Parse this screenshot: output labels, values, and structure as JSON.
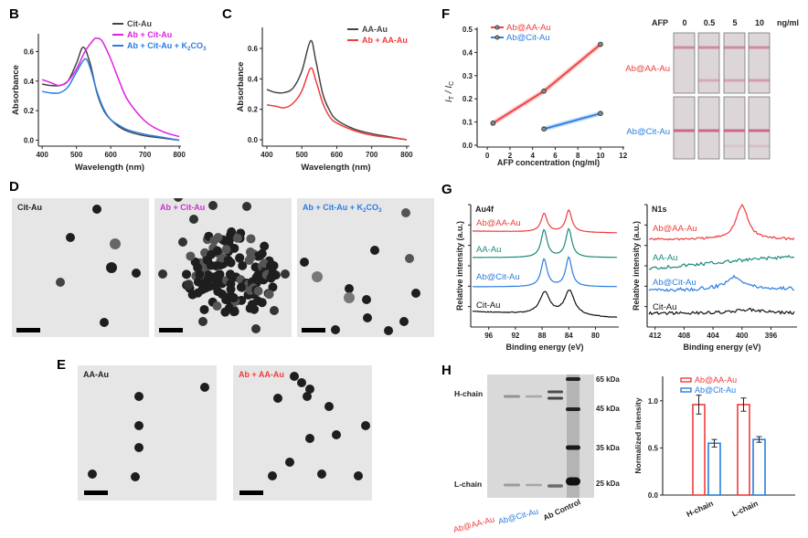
{
  "panel_letters": {
    "B": "B",
    "C": "C",
    "D": "D",
    "E": "E",
    "F": "F",
    "G": "G",
    "H": "H"
  },
  "colors": {
    "cit_au": "#444444",
    "ab_cit_au": "#e020e0",
    "ab_cit_au_k2co3": "#2a7de1",
    "aa_au": "#444444",
    "ab_aa_au": "#f03c3c",
    "ab_at_aa_au": "#f03c3c",
    "ab_at_cit_au": "#2a7de1",
    "aa_au_xps": "#1a8a7a",
    "cit_au_xps": "#111111"
  },
  "tem": {
    "D": [
      {
        "label": "Cit-Au",
        "color": "#222222"
      },
      {
        "label": "Ab + Cit-Au",
        "color": "#d030d0"
      },
      {
        "label_parts": [
          "Ab + Cit-Au + K",
          "2",
          "CO",
          "3"
        ],
        "color": "#2a7de1"
      }
    ],
    "E": [
      {
        "label": "AA-Au",
        "color": "#222222"
      },
      {
        "label": "Ab + AA-Au",
        "color": "#f03c3c"
      }
    ]
  },
  "strips": {
    "header": "AFP",
    "concentrations": [
      "0",
      "0.5",
      "5",
      "10"
    ],
    "unit": "ng/ml",
    "rows": [
      "Ab@AA-Au",
      "Ab@Cit-Au"
    ]
  },
  "gel": {
    "row_labels": [
      "H-chain",
      "L-chain"
    ],
    "markers": [
      "65 kDa",
      "45 kDa",
      "35 kDa",
      "25 kDa"
    ],
    "lanes": [
      "Ab@AA-Au",
      "Ab@Cit-Au",
      "Ab Control"
    ]
  },
  "chart_data": [
    {
      "panel": "B",
      "type": "line",
      "xlabel": "Wavelength (nm)",
      "ylabel": "Absorbance",
      "xlim": [
        400,
        800
      ],
      "ylim": [
        0,
        0.7
      ],
      "xticks": [
        "400",
        "500",
        "600",
        "700",
        "800"
      ],
      "yticks": [
        "0.0",
        "0.2",
        "0.4",
        "0.6"
      ],
      "legend": "top-right",
      "series": [
        {
          "name": "Cit-Au",
          "color": "#444444",
          "x": [
            400,
            425,
            450,
            475,
            500,
            520,
            540,
            560,
            580,
            600,
            625,
            650,
            700,
            750,
            800
          ],
          "y": [
            0.38,
            0.37,
            0.37,
            0.4,
            0.52,
            0.63,
            0.52,
            0.32,
            0.2,
            0.14,
            0.09,
            0.06,
            0.03,
            0.015,
            0.0
          ]
        },
        {
          "name": "Ab + Cit-Au",
          "color": "#e020e0",
          "x": [
            400,
            425,
            450,
            475,
            500,
            525,
            550,
            560,
            575,
            600,
            625,
            650,
            700,
            750,
            800
          ],
          "y": [
            0.41,
            0.39,
            0.37,
            0.4,
            0.48,
            0.6,
            0.68,
            0.69,
            0.67,
            0.55,
            0.4,
            0.27,
            0.13,
            0.06,
            0.025
          ]
        },
        {
          "name": "Ab + Cit-Au + K2CO3",
          "name_parts": [
            "Ab + Cit-Au + K",
            "2",
            "CO",
            "3"
          ],
          "color": "#2a7de1",
          "x": [
            400,
            425,
            450,
            475,
            500,
            525,
            540,
            560,
            580,
            600,
            625,
            650,
            700,
            750,
            800
          ],
          "y": [
            0.33,
            0.32,
            0.32,
            0.36,
            0.46,
            0.55,
            0.49,
            0.33,
            0.21,
            0.14,
            0.1,
            0.07,
            0.04,
            0.02,
            0.0
          ]
        }
      ]
    },
    {
      "panel": "C",
      "type": "line",
      "xlabel": "Wavelength (nm)",
      "ylabel": "Absorbance",
      "xlim": [
        400,
        800
      ],
      "ylim": [
        0,
        0.7
      ],
      "xticks": [
        "400",
        "500",
        "600",
        "700",
        "800"
      ],
      "yticks": [
        "0.0",
        "0.2",
        "0.4",
        "0.6"
      ],
      "legend": "top-right",
      "series": [
        {
          "name": "AA-Au",
          "color": "#444444",
          "x": [
            400,
            425,
            450,
            475,
            500,
            525,
            540,
            560,
            580,
            600,
            650,
            700,
            750,
            800
          ],
          "y": [
            0.33,
            0.31,
            0.31,
            0.34,
            0.45,
            0.65,
            0.52,
            0.3,
            0.19,
            0.13,
            0.07,
            0.04,
            0.02,
            0.0
          ]
        },
        {
          "name": "Ab + AA-Au",
          "color": "#f03c3c",
          "x": [
            400,
            425,
            450,
            475,
            500,
            525,
            540,
            560,
            580,
            600,
            650,
            700,
            750,
            800
          ],
          "y": [
            0.23,
            0.22,
            0.21,
            0.24,
            0.32,
            0.47,
            0.39,
            0.24,
            0.15,
            0.11,
            0.06,
            0.03,
            0.015,
            0.0
          ]
        }
      ]
    },
    {
      "panel": "F",
      "type": "line",
      "xlabel": "AFP concentration (ng/ml)",
      "ylabel_parts": [
        "I",
        "T",
        " / I",
        "C"
      ],
      "xlim": [
        -1,
        12
      ],
      "ylim": [
        0,
        0.5
      ],
      "xticks": [
        "0",
        "2",
        "4",
        "6",
        "8",
        "10",
        "12"
      ],
      "yticks": [
        "0.0",
        "0.1",
        "0.2",
        "0.3",
        "0.4",
        "0.5"
      ],
      "legend": "top-left",
      "series": [
        {
          "name": "Ab@AA-Au",
          "color": "#f03c3c",
          "x": [
            0.5,
            5,
            10
          ],
          "y": [
            0.095,
            0.233,
            0.435
          ]
        },
        {
          "name": "Ab@Cit-Au",
          "color": "#2a7de1",
          "x": [
            5,
            10
          ],
          "y": [
            0.07,
            0.137
          ]
        }
      ]
    },
    {
      "panel": "G-left",
      "type": "line",
      "title": "Au4f",
      "xlabel": "Binding energy (eV)",
      "ylabel": "Relative intensity (a.u.)",
      "xlim": [
        98.7,
        76.5
      ],
      "xticks": [
        "96",
        "92",
        "88",
        "84",
        "80"
      ],
      "stacked": true,
      "series": [
        {
          "name": "Ab@AA-Au",
          "color": "#f03c3c",
          "peaks_eV": [
            87.7,
            84.0
          ],
          "peak_heights": [
            20,
            24
          ]
        },
        {
          "name": "AA-Au",
          "color": "#1a8a7a",
          "peaks_eV": [
            87.7,
            84.0
          ],
          "peak_heights": [
            30,
            31
          ]
        },
        {
          "name": "Ab@Cit-Au",
          "color": "#2a7de1",
          "peaks_eV": [
            87.7,
            84.0
          ],
          "peak_heights": [
            30,
            32
          ]
        },
        {
          "name": "Cit-Au",
          "color": "#111111",
          "peaks_eV": [
            87.6,
            83.9
          ],
          "peak_heights": [
            24,
            27
          ]
        }
      ]
    },
    {
      "panel": "G-right",
      "type": "line",
      "title": "N1s",
      "xlabel": "Binding energy (eV)",
      "ylabel": "Relative intensity (a.u.)",
      "xlim": [
        413.1,
        392.4
      ],
      "xticks": [
        "412",
        "408",
        "404",
        "400",
        "396"
      ],
      "stacked": true,
      "series": [
        {
          "name": "Ab@AA-Au",
          "color": "#f03c3c",
          "peaks_eV": [
            400.0
          ],
          "peak_heights": [
            37
          ]
        },
        {
          "name": "AA-Au",
          "color": "#1a8a7a",
          "peaks_eV": [],
          "peak_heights": []
        },
        {
          "name": "Ab@Cit-Au",
          "color": "#2a7de1",
          "peaks_eV": [
            401.0
          ],
          "peak_heights": [
            14
          ]
        },
        {
          "name": "Cit-Au",
          "color": "#111111",
          "peaks_eV": [
            399.0
          ],
          "peak_heights": [
            4
          ]
        }
      ]
    },
    {
      "panel": "H-right",
      "type": "bar",
      "ylabel": "Normalized intensity",
      "categories": [
        "H-chain",
        "L-chain"
      ],
      "ylim": [
        0,
        1.2
      ],
      "yticks": [
        "0.0",
        "0.5",
        "1.0"
      ],
      "legend": "top-left",
      "series": [
        {
          "name": "Ab@AA-Au",
          "color": "#f03c3c",
          "values": [
            0.96,
            0.96
          ],
          "errors": [
            0.1,
            0.07
          ]
        },
        {
          "name": "Ab@Cit-Au",
          "color": "#2a7de1",
          "values": [
            0.55,
            0.59
          ],
          "errors": [
            0.04,
            0.03
          ]
        }
      ]
    }
  ]
}
